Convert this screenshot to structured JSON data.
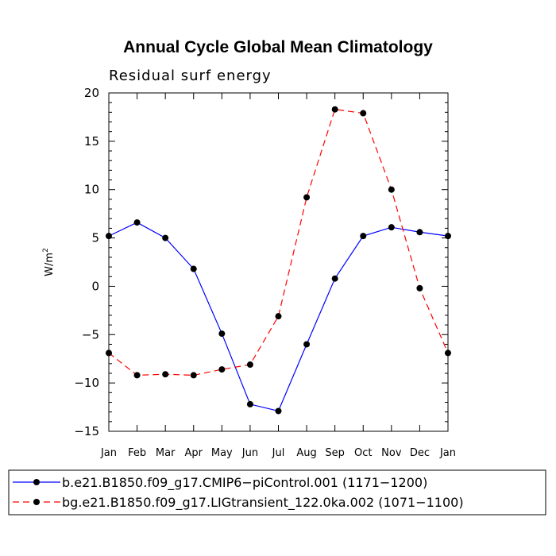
{
  "chart_data": {
    "type": "line",
    "title": "Annual Cycle Global Mean Climatology",
    "subtitle": "Residual surf energy",
    "ylabel": "W/m",
    "ylabel_superscript": "2",
    "xlabel": "",
    "categories": [
      "Jan",
      "Feb",
      "Mar",
      "Apr",
      "May",
      "Jun",
      "Jul",
      "Aug",
      "Sep",
      "Oct",
      "Nov",
      "Dec",
      "Jan"
    ],
    "ylim": [
      -15,
      20
    ],
    "yticks": [
      -15,
      -10,
      -5,
      0,
      5,
      10,
      15,
      20
    ],
    "ytick_labels": [
      "−15",
      "−10",
      "−5",
      "0",
      "5",
      "10",
      "15",
      "20"
    ],
    "grid": false,
    "legend_position": "bottom",
    "series": [
      {
        "name": "b.e21.B1850.f09_g17.CMIP6−piControl.001 (1171−1200)",
        "color": "#0000ff",
        "dash": "solid",
        "values": [
          5.2,
          6.6,
          5.0,
          1.8,
          -4.9,
          -12.2,
          -12.9,
          -6.0,
          0.8,
          5.2,
          6.1,
          5.6,
          5.2
        ]
      },
      {
        "name": "bg.e21.B1850.f09_g17.LIGtransient_122.0ka.002 (1071−1100)",
        "color": "#ff0000",
        "dash": "dashed",
        "values": [
          -6.9,
          -9.2,
          -9.1,
          -9.2,
          -8.6,
          -8.1,
          -3.1,
          9.2,
          18.3,
          17.9,
          10.0,
          -0.2,
          -6.9
        ]
      }
    ]
  }
}
